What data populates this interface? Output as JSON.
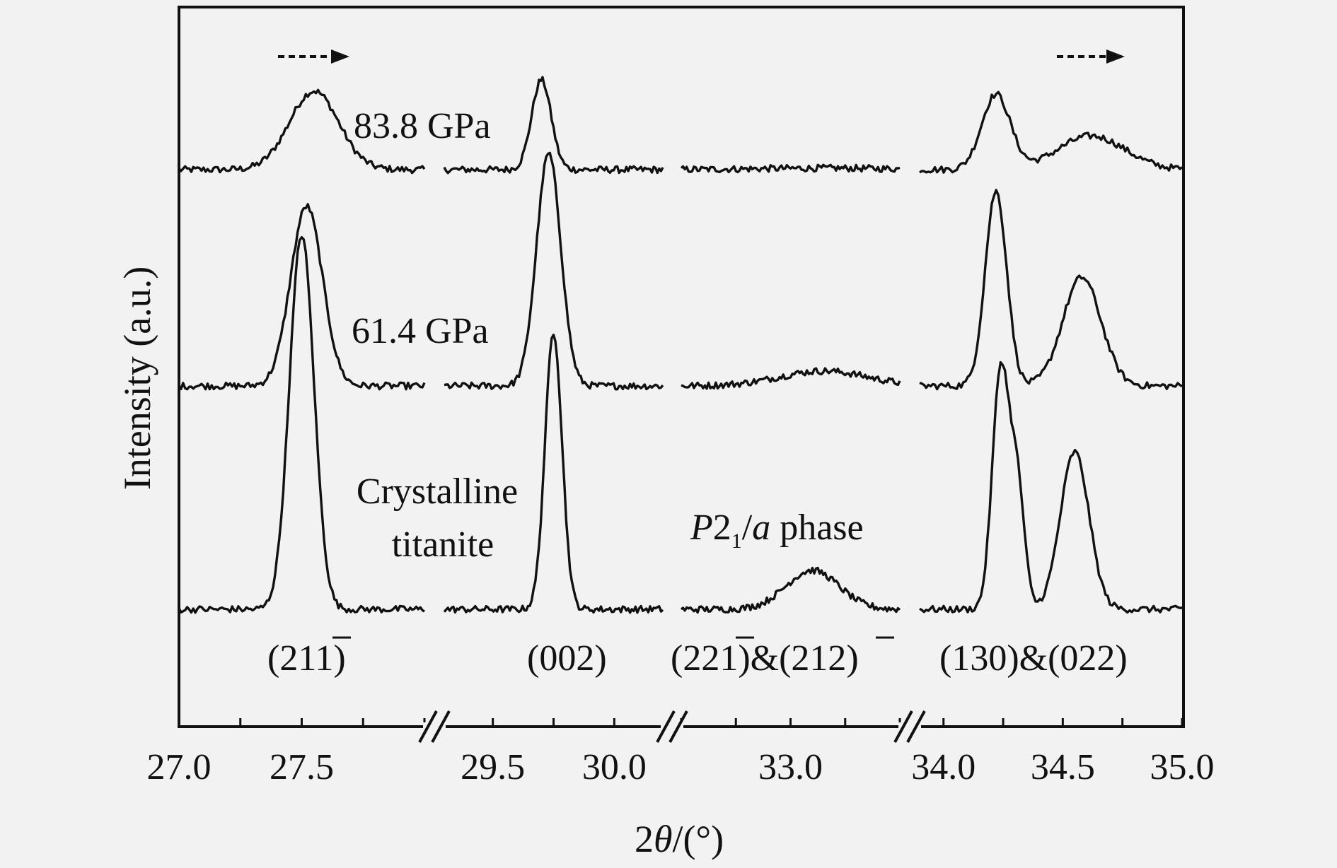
{
  "chart_data": {
    "type": "line",
    "title": "",
    "xlabel_prefix": "2",
    "xlabel_symbol": "θ",
    "xlabel_suffix": "/(°)",
    "ylabel": "Intensity (a.u.)",
    "x_segments": [
      {
        "range": [
          27.0,
          28.0
        ],
        "ticks": [
          "27.0",
          "27.5"
        ],
        "tick_values": [
          27.0,
          27.5
        ]
      },
      {
        "range": [
          29.3,
          30.2
        ],
        "ticks": [
          "29.5",
          "30.0"
        ],
        "tick_values": [
          29.5,
          30.0
        ]
      },
      {
        "range": [
          32.5,
          33.5
        ],
        "ticks": [
          "33.0"
        ],
        "tick_values": [
          33.0
        ]
      },
      {
        "range": [
          33.9,
          35.0
        ],
        "ticks": [
          "34.0",
          "34.5",
          "35.0"
        ],
        "tick_values": [
          34.0,
          34.5,
          35.0
        ]
      }
    ],
    "axis_breaks": "//",
    "series": [
      {
        "name": "83.8 GPa",
        "baseline_offset": 2.0,
        "peaks": [
          [
            27.55,
            1.05,
            0.1
          ],
          [
            29.7,
            1.2,
            0.04
          ],
          [
            33.15,
            0.02,
            0.3
          ],
          [
            34.22,
            1.0,
            0.06
          ],
          [
            34.62,
            0.45,
            0.14
          ]
        ]
      },
      {
        "name": "61.4 GPa",
        "baseline_offset": 1.0,
        "peaks": [
          [
            27.52,
            2.4,
            0.065
          ],
          [
            29.73,
            3.1,
            0.05
          ],
          [
            33.15,
            0.2,
            0.2
          ],
          [
            34.22,
            2.6,
            0.045
          ],
          [
            34.58,
            1.45,
            0.08
          ]
        ]
      },
      {
        "name": "Crystalline titanite",
        "baseline_offset": 0.0,
        "peaks": [
          [
            27.5,
            5.0,
            0.05
          ],
          [
            29.75,
            3.7,
            0.035
          ],
          [
            33.1,
            0.52,
            0.12
          ],
          [
            34.24,
            3.2,
            0.035
          ],
          [
            34.31,
            1.6,
            0.03
          ],
          [
            34.55,
            2.1,
            0.06
          ]
        ]
      }
    ],
    "annotations": {
      "crystalline_line1": "Crystalline",
      "crystalline_line2": "titanite",
      "phase_P": "P",
      "phase_2": "2",
      "phase_sub": "1",
      "phase_slash": "/",
      "phase_a": "a",
      "phase_word": " phase"
    },
    "peak_labels": [
      {
        "pre": "(21",
        "over": "1",
        "post": ")"
      },
      {
        "pre": "(002)",
        "over": "",
        "post": ""
      },
      {
        "pre": "(22",
        "over": "1",
        "post": ")&(21",
        "over2": "2",
        "post2": ")"
      },
      {
        "pre": "(130)&(022)",
        "over": "",
        "post": ""
      }
    ],
    "arrows": [
      "shift-right",
      "shift-right"
    ],
    "grid": false,
    "legend": "none"
  }
}
